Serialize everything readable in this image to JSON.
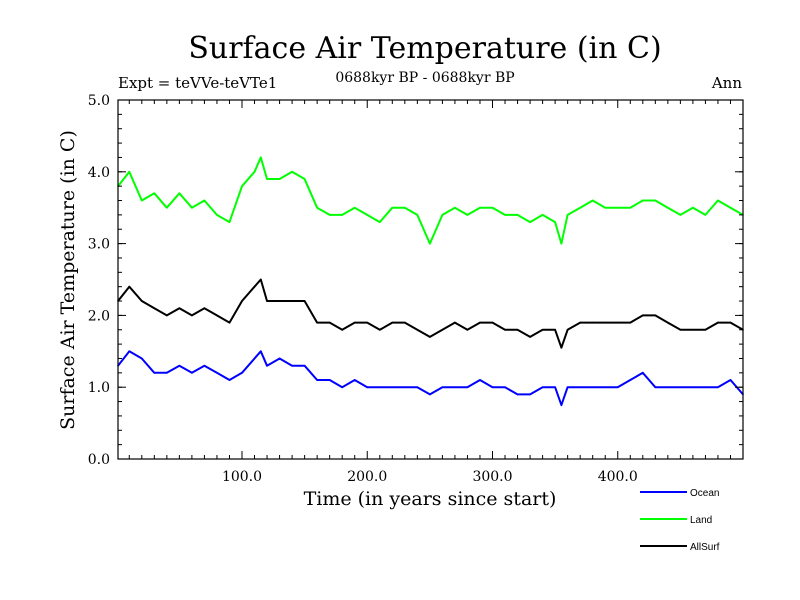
{
  "chart_data": {
    "type": "line",
    "title": "Surface Air Temperature (in C)",
    "subtitle": "0688kyr BP - 0688kyr BP",
    "expt_label": "Expt = teVVe-teVTe1",
    "period_label": "Ann",
    "xlabel": "Time (in years since start)",
    "ylabel": "Surface Air Temperature (in C)",
    "xlim": [
      1,
      500
    ],
    "ylim": [
      0.0,
      5.0
    ],
    "xticks": [
      100,
      200,
      300,
      400
    ],
    "xtick_labels": [
      "100.0",
      "200.0",
      "300.0",
      "400.0"
    ],
    "yticks": [
      0,
      1,
      2,
      3,
      4,
      5
    ],
    "ytick_labels": [
      "0.0",
      "1.0",
      "2.0",
      "3.0",
      "4.0",
      "5.0"
    ],
    "legend_position": "bottom-right, below plot",
    "series": [
      {
        "name": "Ocean",
        "color": "#0000ff",
        "x": [
          1,
          10,
          20,
          30,
          40,
          50,
          60,
          70,
          80,
          90,
          100,
          110,
          115,
          120,
          130,
          140,
          150,
          160,
          170,
          180,
          190,
          200,
          210,
          220,
          230,
          240,
          250,
          260,
          270,
          280,
          290,
          300,
          310,
          320,
          330,
          340,
          350,
          355,
          360,
          370,
          380,
          390,
          400,
          410,
          420,
          430,
          440,
          450,
          460,
          470,
          480,
          490,
          500
        ],
        "values": [
          1.3,
          1.5,
          1.4,
          1.2,
          1.2,
          1.3,
          1.2,
          1.3,
          1.2,
          1.1,
          1.2,
          1.4,
          1.5,
          1.3,
          1.4,
          1.3,
          1.3,
          1.1,
          1.1,
          1.0,
          1.1,
          1.0,
          1.0,
          1.0,
          1.0,
          1.0,
          0.9,
          1.0,
          1.0,
          1.0,
          1.1,
          1.0,
          1.0,
          0.9,
          0.9,
          1.0,
          1.0,
          0.75,
          1.0,
          1.0,
          1.0,
          1.0,
          1.0,
          1.1,
          1.2,
          1.0,
          1.0,
          1.0,
          1.0,
          1.0,
          1.0,
          1.1,
          0.9
        ]
      },
      {
        "name": "Land",
        "color": "#00ff00",
        "x": [
          1,
          10,
          20,
          30,
          40,
          50,
          60,
          70,
          80,
          90,
          100,
          110,
          115,
          120,
          130,
          140,
          150,
          160,
          170,
          180,
          190,
          200,
          210,
          220,
          230,
          240,
          250,
          260,
          270,
          280,
          290,
          300,
          310,
          320,
          330,
          340,
          350,
          355,
          360,
          370,
          380,
          390,
          400,
          410,
          420,
          430,
          440,
          450,
          460,
          470,
          480,
          490,
          500
        ],
        "values": [
          3.8,
          4.0,
          3.6,
          3.7,
          3.5,
          3.7,
          3.5,
          3.6,
          3.4,
          3.3,
          3.8,
          4.0,
          4.2,
          3.9,
          3.9,
          4.0,
          3.9,
          3.5,
          3.4,
          3.4,
          3.5,
          3.4,
          3.3,
          3.5,
          3.5,
          3.4,
          3.0,
          3.4,
          3.5,
          3.4,
          3.5,
          3.5,
          3.4,
          3.4,
          3.3,
          3.4,
          3.3,
          3.0,
          3.4,
          3.5,
          3.6,
          3.5,
          3.5,
          3.5,
          3.6,
          3.6,
          3.5,
          3.4,
          3.5,
          3.4,
          3.6,
          3.5,
          3.4
        ]
      },
      {
        "name": "AllSurf",
        "color": "#000000",
        "x": [
          1,
          10,
          20,
          30,
          40,
          50,
          60,
          70,
          80,
          90,
          100,
          110,
          115,
          120,
          130,
          140,
          150,
          160,
          170,
          180,
          190,
          200,
          210,
          220,
          230,
          240,
          250,
          260,
          270,
          280,
          290,
          300,
          310,
          320,
          330,
          340,
          350,
          355,
          360,
          370,
          380,
          390,
          400,
          410,
          420,
          430,
          440,
          450,
          460,
          470,
          480,
          490,
          500
        ],
        "values": [
          2.2,
          2.4,
          2.2,
          2.1,
          2.0,
          2.1,
          2.0,
          2.1,
          2.0,
          1.9,
          2.2,
          2.4,
          2.5,
          2.2,
          2.2,
          2.2,
          2.2,
          1.9,
          1.9,
          1.8,
          1.9,
          1.9,
          1.8,
          1.9,
          1.9,
          1.8,
          1.7,
          1.8,
          1.9,
          1.8,
          1.9,
          1.9,
          1.8,
          1.8,
          1.7,
          1.8,
          1.8,
          1.55,
          1.8,
          1.9,
          1.9,
          1.9,
          1.9,
          1.9,
          2.0,
          2.0,
          1.9,
          1.8,
          1.8,
          1.8,
          1.9,
          1.9,
          1.8
        ]
      }
    ]
  }
}
